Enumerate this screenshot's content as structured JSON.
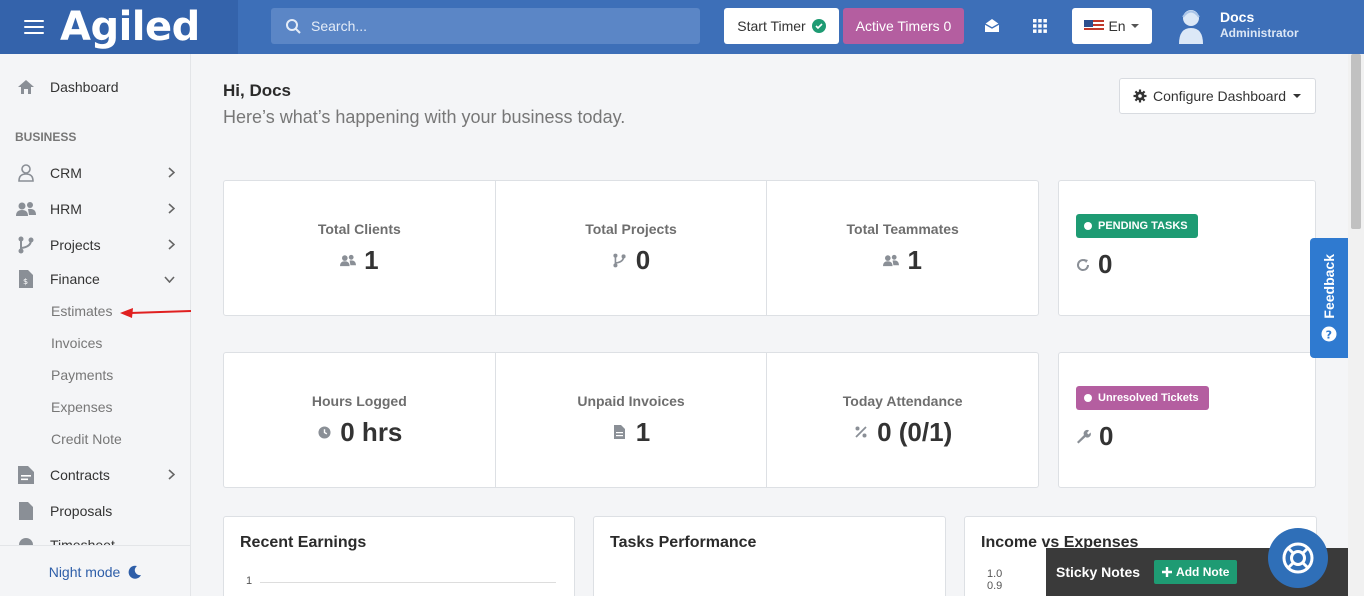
{
  "header": {
    "logo": "Agiled",
    "search_placeholder": "Search...",
    "start_timer": "Start Timer",
    "active_timers": "Active Timers 0",
    "language": "En",
    "user_name": "Docs",
    "user_role": "Administrator"
  },
  "sidebar": {
    "dashboard": "Dashboard",
    "section_business": "BUSINESS",
    "items": {
      "crm": "CRM",
      "hrm": "HRM",
      "projects": "Projects",
      "finance": "Finance",
      "contracts": "Contracts",
      "proposals": "Proposals",
      "timesheet": "Timesheet"
    },
    "finance_sub": {
      "estimates": "Estimates",
      "invoices": "Invoices",
      "payments": "Payments",
      "expenses": "Expenses",
      "credit_note": "Credit Note"
    },
    "night_mode": "Night mode"
  },
  "main": {
    "greeting": "Hi, Docs",
    "subtitle": "Here’s what’s happening with your business today.",
    "configure": "Configure Dashboard",
    "stats_row1": [
      {
        "label": "Total Clients",
        "value": "1",
        "icon": "users-icon"
      },
      {
        "label": "Total Projects",
        "value": "0",
        "icon": "branch-icon"
      },
      {
        "label": "Total Teammates",
        "value": "1",
        "icon": "users-icon"
      }
    ],
    "pending": {
      "badge": "PENDING TASKS",
      "value": "0",
      "color": "#1e9b73"
    },
    "stats_row2": [
      {
        "label": "Hours Logged",
        "value": "0 hrs",
        "icon": "clock-icon"
      },
      {
        "label": "Unpaid Invoices",
        "value": "1",
        "icon": "file-icon"
      },
      {
        "label": "Today Attendance",
        "value": "0 (0/1)",
        "icon": "percent-icon"
      }
    ],
    "tickets": {
      "badge": "Unresolved Tickets",
      "value": "0",
      "color": "#b45ea0"
    },
    "panels": {
      "recent_earnings": "Recent Earnings",
      "tasks_performance": "Tasks Performance",
      "income_vs_expenses": "Income vs Expenses",
      "earnings_axis_label": "1",
      "income_axis_top": "1.0",
      "income_axis_second": "0.9"
    }
  },
  "widgets": {
    "feedback": "Feedback",
    "sticky_notes": "Sticky Notes",
    "add_note": "Add Note"
  },
  "colors": {
    "topbar": "#3d6fb8",
    "accent_green": "#1e9b73",
    "accent_purple": "#b45ea0",
    "link_blue": "#2e5ea8"
  }
}
